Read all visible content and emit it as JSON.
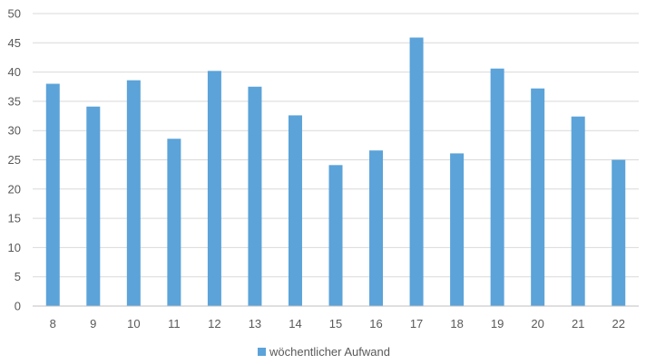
{
  "chart_data": {
    "type": "bar",
    "categories": [
      "8",
      "9",
      "10",
      "11",
      "12",
      "13",
      "14",
      "15",
      "16",
      "17",
      "18",
      "19",
      "20",
      "21",
      "22"
    ],
    "series": [
      {
        "name": "wöchentlicher Aufwand",
        "values": [
          38,
          34.1,
          38.6,
          28.6,
          40.2,
          37.5,
          32.6,
          24.1,
          26.6,
          45.9,
          26.1,
          40.6,
          37.2,
          32.4,
          25
        ]
      }
    ],
    "ylim": [
      0,
      50
    ],
    "yticks": [
      "0",
      "5",
      "10",
      "15",
      "20",
      "25",
      "30",
      "35",
      "40",
      "45",
      "50"
    ],
    "grid": true,
    "legend_position": "bottom",
    "bar_color": "#5ba3d9",
    "gridline_color": "#d9d9d9",
    "axis_color": "#bfbfbf"
  }
}
